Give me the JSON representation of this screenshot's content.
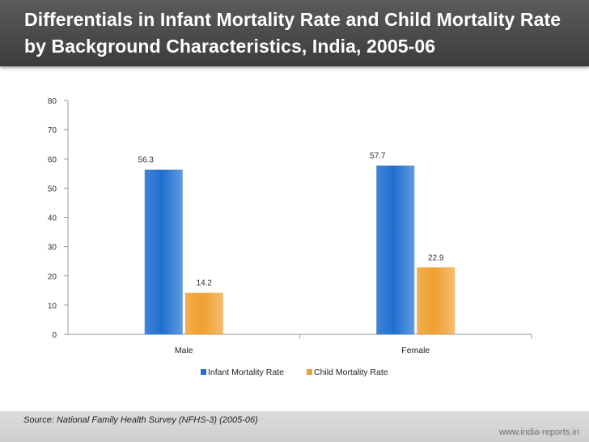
{
  "slide": {
    "title": "Differentials in Infant Mortality Rate and Child Mortality Rate by Background Characteristics, India, 2005-06",
    "source": "Source: National Family Health Survey (NFHS-3) (2005-06)",
    "website": "www.india-reports.in"
  },
  "colors": {
    "infant": "#1f6fd0",
    "child": "#f0a030"
  },
  "chart_data": {
    "type": "bar",
    "title": "",
    "xlabel": "",
    "ylabel": "",
    "categories": [
      "Male",
      "Female"
    ],
    "series": [
      {
        "name": "Infant Mortality Rate",
        "values": [
          56.3,
          57.7
        ],
        "labels": [
          "56.3",
          "57.7"
        ]
      },
      {
        "name": "Child Mortality Rate",
        "values": [
          14.2,
          22.9
        ],
        "labels": [
          "14.2",
          "22.9"
        ]
      }
    ],
    "ylim": [
      0,
      80
    ],
    "yticks": [
      "0",
      "10",
      "20",
      "30",
      "40",
      "50",
      "60",
      "70",
      "80"
    ],
    "grid": false,
    "legend": "bottom"
  }
}
